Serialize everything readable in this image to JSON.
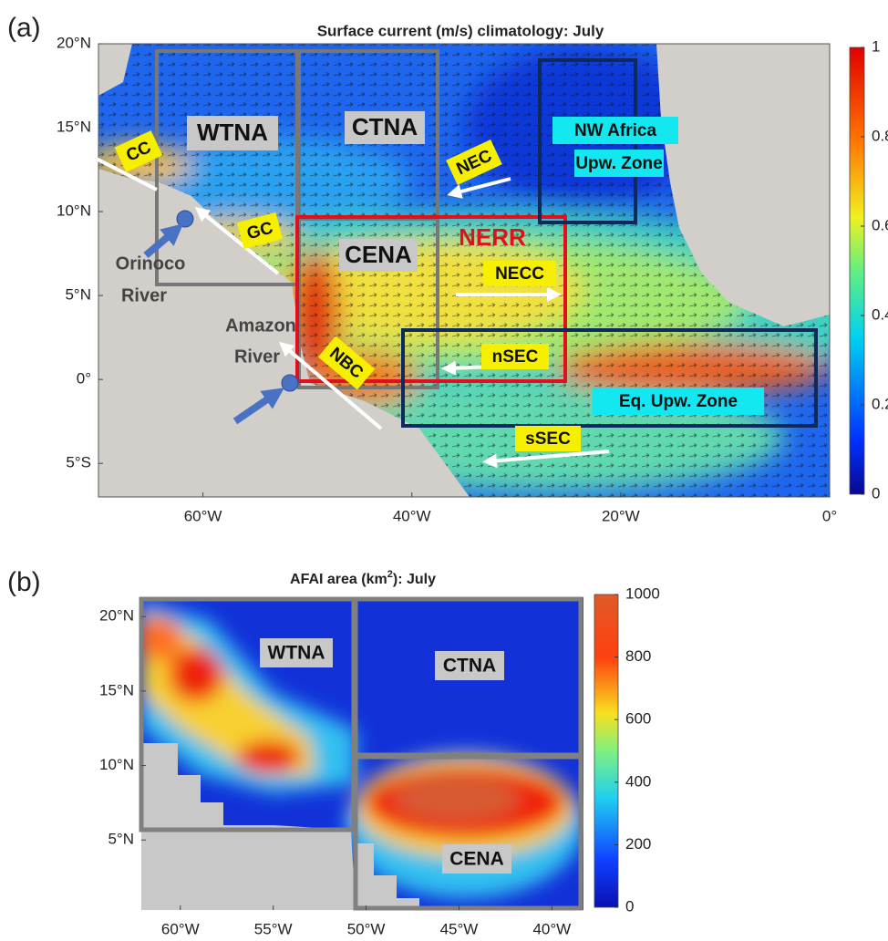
{
  "panels": [
    {
      "label": "(a)",
      "title": "Surface current (m/s) climatology: July",
      "xlim": [
        -70,
        0
      ],
      "ylim": [
        -7,
        20
      ],
      "xticks": [
        {
          "value": -60,
          "label": "60°W"
        },
        {
          "value": -40,
          "label": "40°W"
        },
        {
          "value": -20,
          "label": "20°W"
        },
        {
          "value": 0,
          "label": "0°"
        }
      ],
      "yticks": [
        {
          "value": -5,
          "label": "5°S"
        },
        {
          "value": 0,
          "label": "0°"
        },
        {
          "value": 5,
          "label": "5°N"
        },
        {
          "value": 10,
          "label": "10°N"
        },
        {
          "value": 15,
          "label": "15°N"
        },
        {
          "value": 20,
          "label": "20°N"
        }
      ],
      "colorbar": {
        "lim": [
          0,
          1
        ],
        "ticks": [
          0,
          0.2,
          0.4,
          0.6,
          0.8,
          1
        ]
      },
      "regions": [
        "WTNA",
        "CTNA",
        "CENA",
        "NERR",
        "NW Africa",
        "Upw. Zone",
        "Eq. Upw. Zone"
      ],
      "currents": [
        "CC",
        "GC",
        "NEC",
        "NECC",
        "nSEC",
        "NBC",
        "sSEC"
      ],
      "rivers": [
        [
          "Orinoco",
          "River"
        ],
        [
          "Amazon",
          "River"
        ]
      ]
    },
    {
      "label": "(b)",
      "title": {
        "text": "AFAI area (km",
        "sup": "2",
        "end": "): July"
      },
      "xlim": [
        -62.1,
        -38.3
      ],
      "ylim": [
        0.3,
        21.3
      ],
      "xticks": [
        {
          "value": -60,
          "label": "60°W"
        },
        {
          "value": -55,
          "label": "55°W"
        },
        {
          "value": -50,
          "label": "50°W"
        },
        {
          "value": -45,
          "label": "45°W"
        },
        {
          "value": -40,
          "label": "40°W"
        }
      ],
      "yticks": [
        {
          "value": 5,
          "label": "5°N"
        },
        {
          "value": 10,
          "label": "10°N"
        },
        {
          "value": 15,
          "label": "15°N"
        },
        {
          "value": 20,
          "label": "20°N"
        }
      ],
      "colorbar": {
        "lim": [
          0,
          1000
        ],
        "ticks": [
          0,
          200,
          400,
          600,
          800,
          1000
        ]
      },
      "regions": [
        "WTNA",
        "CTNA",
        "CENA"
      ]
    }
  ]
}
